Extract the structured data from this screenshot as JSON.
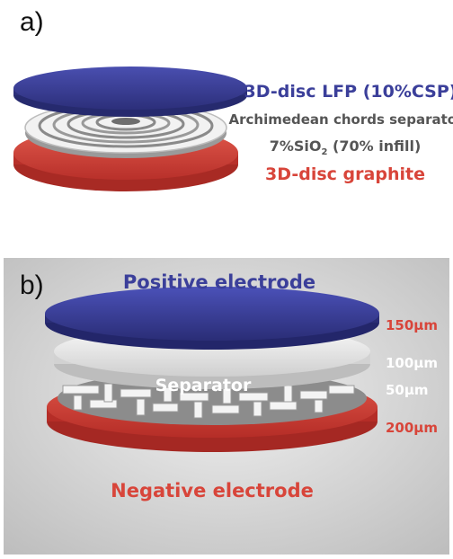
{
  "panel_a": {
    "label": "a)",
    "top_layer": "3D-disc LFP (10%CSP)",
    "separator": "Archimedean chords separator",
    "material_prefix": "7%SiO",
    "material_sub": "2",
    "material_suffix": " (70% infill)",
    "bottom_layer": "3D-disc graphite"
  },
  "panel_b": {
    "label": "b)",
    "positive": "Positive electrode",
    "separator": "Separator",
    "negative": "Negative electrode",
    "thickness_top": "150μm",
    "thickness_mid": "100μm",
    "thickness_sep": "50μm",
    "thickness_bottom": "200μm"
  },
  "colors": {
    "positive": "#3b3f9a",
    "negative": "#d8453a",
    "separator": "#e6e6e6",
    "text_gray": "#555555"
  }
}
